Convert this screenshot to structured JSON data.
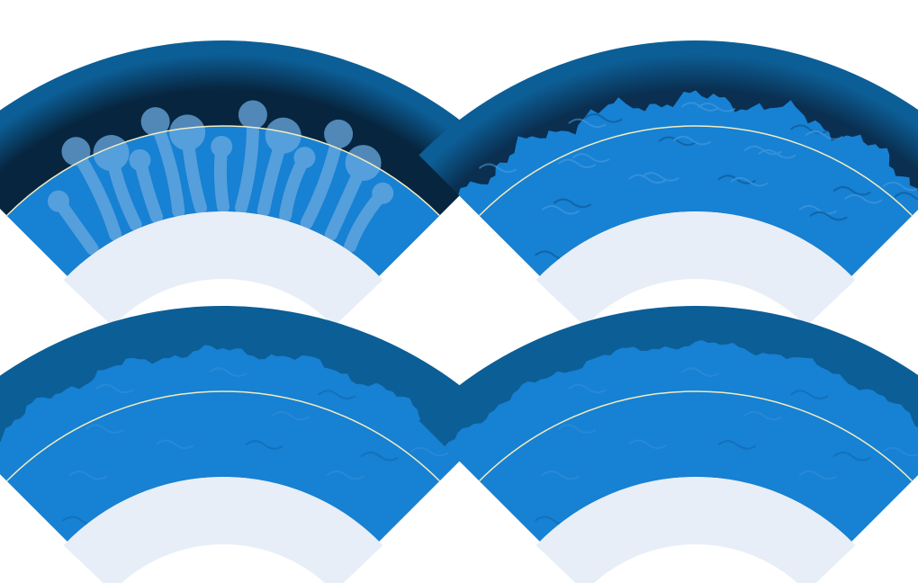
{
  "figure": {
    "panels": [
      {
        "id": "top-left",
        "variant": "early-plumes"
      },
      {
        "id": "top-right",
        "variant": "turbulent-mixing"
      },
      {
        "id": "bottom-left",
        "variant": "mostly-mixed"
      },
      {
        "id": "bottom-right",
        "variant": "fully-mixed"
      }
    ],
    "colors": {
      "background": "#ffffff",
      "outer_shell": "#0c5e96",
      "outer_shell_dark": "#07253e",
      "convective_blue": "#1781d3",
      "plume_light": "#6aa9e0",
      "core": "#e7eef7",
      "boundary_line": "#f4ecc0"
    }
  }
}
